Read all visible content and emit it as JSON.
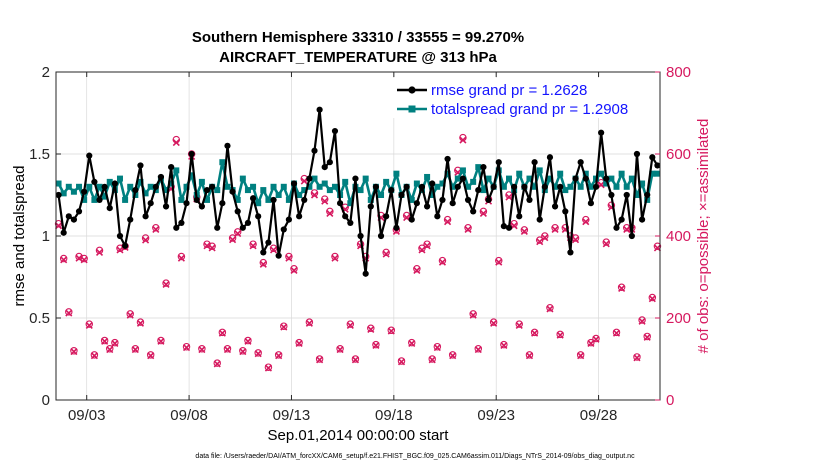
{
  "chart_data": {
    "type": "line",
    "title": "Southern Hemisphere 33310 / 33555 = 99.270%",
    "subtitle": "AIRCRAFT_TEMPERATURE @ 313 hPa",
    "xlabel": "Sep.01,2014 00:00:00 start",
    "ylabel": "rmse and totalspread",
    "ylabel_right": "# of obs: o=possible; ×=assimilated",
    "footnote": "data file: /Users/raeder/DAI/ATM_forcXX/CAM6_setup/f.e21.FHIST_BGC.f09_025.CAM6assim.011/Diags_NTrS_2014-09/obs_diag_output.nc",
    "xlim": [
      1.5,
      31.0
    ],
    "ylim": [
      0,
      2
    ],
    "ylim_right": [
      0,
      800
    ],
    "x_ticks": [
      3,
      8,
      13,
      18,
      23,
      28
    ],
    "x_ticklabels": [
      "09/03",
      "09/08",
      "09/13",
      "09/18",
      "09/23",
      "09/28"
    ],
    "y_ticks": [
      0,
      0.5,
      1,
      1.5,
      2
    ],
    "y_ticklabels": [
      "0",
      "0.5",
      "1",
      "1.5",
      "2"
    ],
    "y_right_ticks": [
      0,
      200,
      400,
      600,
      800
    ],
    "y_right_ticklabels": [
      "0",
      "200",
      "400",
      "600",
      "800"
    ],
    "grid": true,
    "legend_position": "top-right",
    "colors": {
      "rmse": "#000000",
      "totalspread": "#008080",
      "obs": "#d6195f",
      "right_axis": "#d6195f",
      "grid": "#d9d9d9"
    },
    "series": [
      {
        "name": "rmse grand pr = 1.2628",
        "x": [
          1.625,
          1.875,
          2.125,
          2.375,
          2.625,
          2.875,
          3.125,
          3.375,
          3.625,
          3.875,
          4.125,
          4.375,
          4.625,
          4.875,
          5.125,
          5.375,
          5.625,
          5.875,
          6.125,
          6.375,
          6.625,
          6.875,
          7.125,
          7.375,
          7.625,
          7.875,
          8.125,
          8.375,
          8.625,
          8.875,
          9.125,
          9.375,
          9.625,
          9.875,
          10.125,
          10.375,
          10.625,
          10.875,
          11.125,
          11.375,
          11.625,
          11.875,
          12.125,
          12.375,
          12.625,
          12.875,
          13.125,
          13.375,
          13.625,
          13.875,
          14.125,
          14.375,
          14.625,
          14.875,
          15.125,
          15.375,
          15.625,
          15.875,
          16.125,
          16.375,
          16.625,
          16.875,
          17.125,
          17.375,
          17.625,
          17.875,
          18.125,
          18.375,
          18.625,
          18.875,
          19.125,
          19.375,
          19.625,
          19.875,
          20.125,
          20.375,
          20.625,
          20.875,
          21.125,
          21.375,
          21.625,
          21.875,
          22.125,
          22.375,
          22.625,
          22.875,
          23.125,
          23.375,
          23.625,
          23.875,
          24.125,
          24.375,
          24.625,
          24.875,
          25.125,
          25.375,
          25.625,
          25.875,
          26.125,
          26.375,
          26.625,
          26.875,
          27.125,
          27.375,
          27.625,
          27.875,
          28.125,
          28.375,
          28.625,
          28.875,
          29.125,
          29.375,
          29.625,
          29.875,
          30.125,
          30.375,
          30.625,
          30.875
        ],
        "values": [
          1.25,
          1.02,
          1.12,
          1.1,
          1.15,
          1.27,
          1.49,
          1.33,
          1.22,
          1.3,
          1.17,
          1.32,
          1.0,
          0.94,
          1.1,
          1.28,
          1.43,
          1.12,
          1.2,
          1.3,
          1.36,
          1.18,
          1.42,
          1.05,
          1.08,
          1.2,
          1.5,
          1.22,
          1.18,
          1.28,
          1.3,
          1.05,
          1.2,
          1.55,
          1.27,
          1.15,
          1.05,
          1.08,
          1.23,
          1.12,
          0.9,
          0.96,
          1.22,
          0.88,
          1.04,
          1.1,
          1.32,
          1.12,
          1.22,
          1.35,
          1.52,
          1.77,
          1.42,
          1.45,
          1.64,
          1.2,
          1.12,
          1.08,
          1.35,
          1.0,
          0.77,
          1.18,
          1.3,
          1.0,
          1.12,
          1.28,
          1.05,
          1.25,
          1.3,
          1.1,
          1.2,
          1.3,
          1.18,
          1.32,
          1.12,
          1.22,
          1.47,
          1.2,
          1.3,
          1.35,
          1.22,
          1.15,
          1.28,
          1.42,
          1.22,
          1.3,
          1.45,
          1.06,
          1.05,
          1.3,
          1.12,
          1.3,
          1.22,
          1.45,
          1.1,
          1.3,
          1.48,
          1.18,
          1.3,
          1.15,
          0.9,
          1.35,
          1.45,
          1.35,
          1.2,
          1.3,
          1.63,
          1.35,
          1.25,
          1.05,
          1.1,
          1.25,
          1.0,
          1.5,
          1.1,
          1.25,
          1.48,
          1.43
        ]
      },
      {
        "name": "totalspread grand pr = 1.2908",
        "x": [
          1.625,
          1.875,
          2.125,
          2.375,
          2.625,
          2.875,
          3.125,
          3.375,
          3.625,
          3.875,
          4.125,
          4.375,
          4.625,
          4.875,
          5.125,
          5.375,
          5.625,
          5.875,
          6.125,
          6.375,
          6.625,
          6.875,
          7.125,
          7.375,
          7.625,
          7.875,
          8.125,
          8.375,
          8.625,
          8.875,
          9.125,
          9.375,
          9.625,
          9.875,
          10.125,
          10.375,
          10.625,
          10.875,
          11.125,
          11.375,
          11.625,
          11.875,
          12.125,
          12.375,
          12.625,
          12.875,
          13.125,
          13.375,
          13.625,
          13.875,
          14.125,
          14.375,
          14.625,
          14.875,
          15.125,
          15.375,
          15.625,
          15.875,
          16.125,
          16.375,
          16.625,
          16.875,
          17.125,
          17.375,
          17.625,
          17.875,
          18.125,
          18.375,
          18.625,
          18.875,
          19.125,
          19.375,
          19.625,
          19.875,
          20.125,
          20.375,
          20.625,
          20.875,
          21.125,
          21.375,
          21.625,
          21.875,
          22.125,
          22.375,
          22.625,
          22.875,
          23.125,
          23.375,
          23.625,
          23.875,
          24.125,
          24.375,
          24.625,
          24.875,
          25.125,
          25.375,
          25.625,
          25.875,
          26.125,
          26.375,
          26.625,
          26.875,
          27.125,
          27.375,
          27.625,
          27.875,
          28.125,
          28.375,
          28.625,
          28.875,
          29.125,
          29.375,
          29.625,
          29.875,
          30.125,
          30.375,
          30.625,
          30.875
        ],
        "values": [
          1.32,
          1.26,
          1.3,
          1.27,
          1.3,
          1.22,
          1.3,
          1.22,
          1.3,
          1.24,
          1.33,
          1.28,
          1.35,
          1.22,
          1.3,
          1.25,
          1.33,
          1.26,
          1.3,
          1.28,
          1.35,
          1.28,
          1.32,
          1.4,
          1.22,
          1.3,
          1.37,
          1.25,
          1.33,
          1.22,
          1.3,
          1.28,
          1.45,
          1.3,
          1.28,
          1.22,
          1.35,
          1.28,
          1.3,
          1.2,
          1.28,
          1.22,
          1.3,
          1.25,
          1.3,
          1.22,
          1.32,
          1.25,
          1.28,
          1.3,
          1.35,
          1.3,
          1.32,
          1.28,
          1.3,
          1.25,
          1.33,
          1.2,
          1.3,
          1.28,
          1.35,
          1.22,
          1.3,
          1.25,
          1.33,
          1.28,
          1.38,
          1.25,
          1.3,
          1.22,
          1.32,
          1.28,
          1.36,
          1.25,
          1.3,
          1.32,
          1.38,
          1.3,
          1.35,
          1.4,
          1.3,
          1.33,
          1.42,
          1.28,
          1.35,
          1.3,
          1.4,
          1.3,
          1.35,
          1.28,
          1.38,
          1.3,
          1.35,
          1.3,
          1.4,
          1.28,
          1.35,
          1.3,
          1.38,
          1.28,
          1.3,
          1.35,
          1.3,
          1.38,
          1.3,
          1.35,
          1.38,
          1.32,
          1.35,
          1.3,
          1.38,
          1.3,
          1.35,
          1.25,
          1.32,
          1.22,
          1.38,
          1.38
        ]
      },
      {
        "name": "obs possible",
        "x": [
          1.625,
          1.875,
          2.125,
          2.375,
          2.625,
          2.875,
          3.125,
          3.375,
          3.625,
          3.875,
          4.125,
          4.375,
          4.625,
          4.875,
          5.125,
          5.375,
          5.625,
          5.875,
          6.125,
          6.375,
          6.625,
          6.875,
          7.125,
          7.375,
          7.625,
          7.875,
          8.125,
          8.375,
          8.625,
          8.875,
          9.125,
          9.375,
          9.625,
          9.875,
          10.125,
          10.375,
          10.625,
          10.875,
          11.125,
          11.375,
          11.625,
          11.875,
          12.125,
          12.375,
          12.625,
          12.875,
          13.125,
          13.375,
          13.625,
          13.875,
          14.125,
          14.375,
          14.625,
          14.875,
          15.125,
          15.375,
          15.625,
          15.875,
          16.125,
          16.375,
          16.625,
          16.875,
          17.125,
          17.375,
          17.625,
          17.875,
          18.125,
          18.375,
          18.625,
          18.875,
          19.125,
          19.375,
          19.625,
          19.875,
          20.125,
          20.375,
          20.625,
          20.875,
          21.125,
          21.375,
          21.625,
          21.875,
          22.125,
          22.375,
          22.625,
          22.875,
          23.125,
          23.375,
          23.625,
          23.875,
          24.125,
          24.375,
          24.625,
          24.875,
          25.125,
          25.375,
          25.625,
          25.875,
          26.125,
          26.375,
          26.625,
          26.875,
          27.125,
          27.375,
          27.625,
          27.875,
          28.125,
          28.375,
          28.625,
          28.875,
          29.125,
          29.375,
          29.625,
          29.875,
          30.125,
          30.375,
          30.625,
          30.875
        ],
        "values": [
          430,
          345,
          215,
          120,
          350,
          345,
          185,
          110,
          365,
          145,
          125,
          140,
          370,
          375,
          210,
          125,
          190,
          395,
          110,
          420,
          145,
          285,
          520,
          635,
          350,
          130,
          600,
          495,
          125,
          380,
          375,
          90,
          165,
          125,
          395,
          410,
          120,
          145,
          380,
          115,
          335,
          80,
          370,
          110,
          180,
          350,
          320,
          140,
          540,
          190,
          505,
          100,
          490,
          460,
          350,
          125,
          470,
          185,
          100,
          380,
          350,
          175,
          135,
          450,
          360,
          170,
          415,
          95,
          450,
          140,
          320,
          370,
          380,
          100,
          130,
          340,
          440,
          110,
          560,
          640,
          420,
          210,
          125,
          460,
          490,
          190,
          340,
          135,
          500,
          430,
          185,
          415,
          110,
          165,
          390,
          400,
          225,
          420,
          160,
          420,
          400,
          395,
          110,
          440,
          140,
          150,
          530,
          385,
          475,
          165,
          275,
          420,
          420,
          105,
          195,
          155,
          250,
          375
        ]
      },
      {
        "name": "obs assimilated",
        "x": [
          1.625,
          1.875,
          2.125,
          2.375,
          2.625,
          2.875,
          3.125,
          3.375,
          3.625,
          3.875,
          4.125,
          4.375,
          4.625,
          4.875,
          5.125,
          5.375,
          5.625,
          5.875,
          6.125,
          6.375,
          6.625,
          6.875,
          7.125,
          7.375,
          7.625,
          7.875,
          8.125,
          8.375,
          8.625,
          8.875,
          9.125,
          9.375,
          9.625,
          9.875,
          10.125,
          10.375,
          10.625,
          10.875,
          11.125,
          11.375,
          11.625,
          11.875,
          12.125,
          12.375,
          12.625,
          12.875,
          13.125,
          13.375,
          13.625,
          13.875,
          14.125,
          14.375,
          14.625,
          14.875,
          15.125,
          15.375,
          15.625,
          15.875,
          16.125,
          16.375,
          16.625,
          16.875,
          17.125,
          17.375,
          17.625,
          17.875,
          18.125,
          18.375,
          18.625,
          18.875,
          19.125,
          19.375,
          19.625,
          19.875,
          20.125,
          20.375,
          20.625,
          20.875,
          21.125,
          21.375,
          21.625,
          21.875,
          22.125,
          22.375,
          22.625,
          22.875,
          23.125,
          23.375,
          23.625,
          23.875,
          24.125,
          24.375,
          24.625,
          24.875,
          25.125,
          25.375,
          25.625,
          25.875,
          26.125,
          26.375,
          26.625,
          26.875,
          27.125,
          27.375,
          27.625,
          27.875,
          28.125,
          28.375,
          28.625,
          28.875,
          29.125,
          29.375,
          29.625,
          29.875,
          30.125,
          30.375,
          30.625,
          30.875
        ],
        "values": [
          425,
          342,
          212,
          118,
          346,
          342,
          182,
          108,
          360,
          143,
          123,
          138,
          366,
          372,
          207,
          123,
          187,
          390,
          108,
          416,
          143,
          282,
          515,
          628,
          346,
          128,
          594,
          490,
          123,
          376,
          371,
          88,
          163,
          123,
          391,
          406,
          118,
          143,
          376,
          113,
          331,
          78,
          366,
          108,
          178,
          346,
          316,
          138,
          534,
          187,
          500,
          98,
          485,
          455,
          346,
          123,
          465,
          182,
          98,
          376,
          346,
          172,
          133,
          445,
          356,
          168,
          411,
          93,
          445,
          138,
          316,
          366,
          376,
          98,
          128,
          336,
          435,
          108,
          555,
          634,
          416,
          207,
          123,
          455,
          485,
          187,
          336,
          133,
          495,
          425,
          182,
          411,
          108,
          163,
          386,
          396,
          222,
          416,
          158,
          416,
          396,
          391,
          108,
          435,
          138,
          148,
          525,
          381,
          470,
          163,
          272,
          416,
          416,
          103,
          192,
          153,
          247,
          371
        ]
      }
    ]
  }
}
